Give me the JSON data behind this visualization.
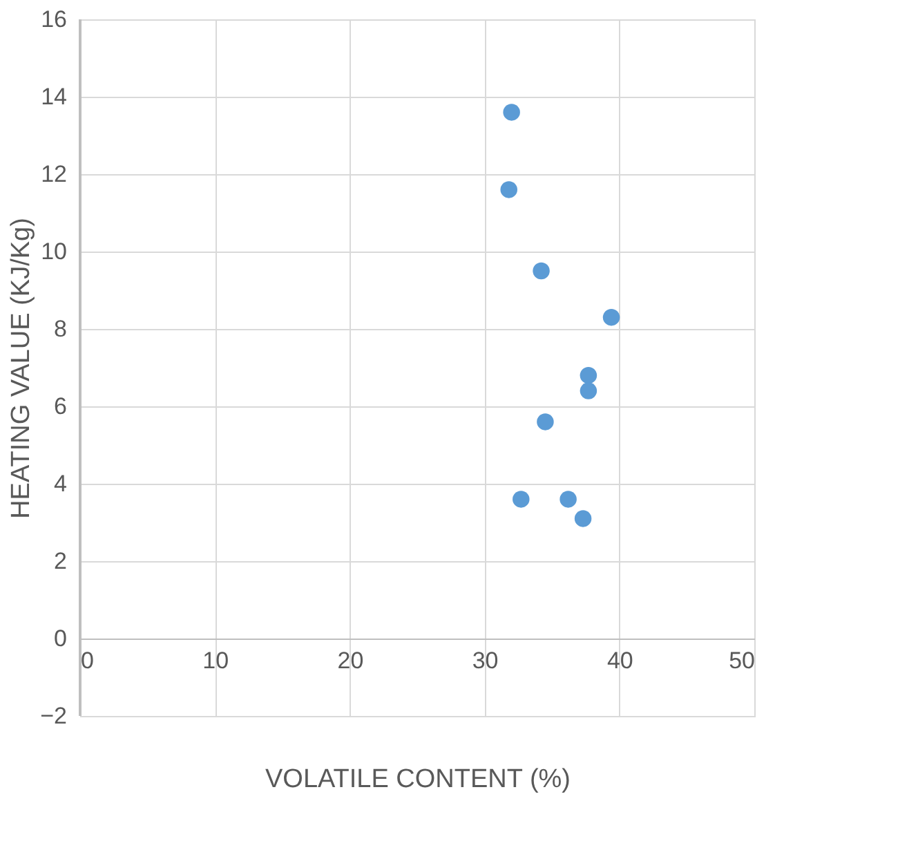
{
  "chart_data": {
    "type": "scatter",
    "xlabel": "VOLATILE CONTENT (%)",
    "ylabel": "HEATING VALUE (KJ/Kg)",
    "x": [
      32.0,
      31.8,
      34.2,
      39.4,
      37.7,
      37.7,
      34.5,
      32.7,
      36.2,
      37.3
    ],
    "series": [
      {
        "color": "#5b9bd5",
        "values": [
          13.6,
          11.6,
          9.5,
          8.3,
          6.8,
          6.4,
          5.6,
          3.6,
          3.6,
          3.1
        ]
      }
    ],
    "xlim": [
      0,
      50
    ],
    "xticks": [
      0,
      10,
      20,
      30,
      40,
      50
    ],
    "ylim": [
      -2,
      16
    ],
    "yticks": [
      -2,
      0,
      2,
      4,
      6,
      8,
      10,
      12,
      14,
      16
    ],
    "grid": true,
    "marker": "circle"
  }
}
